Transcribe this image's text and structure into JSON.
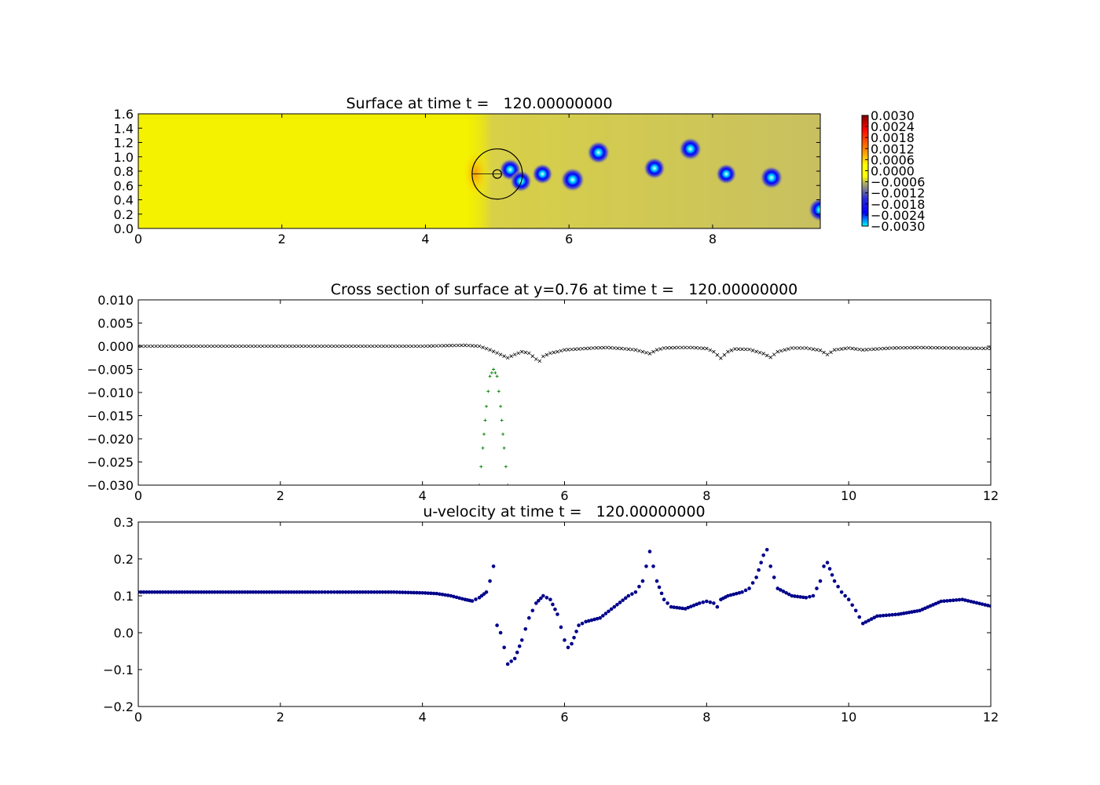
{
  "chart_data": [
    {
      "type": "heatmap",
      "title": "Surface at time t =   120.00000000",
      "xlim": [
        0,
        9.5
      ],
      "ylim": [
        0,
        1.6
      ],
      "xticks": [
        "0",
        "2",
        "4",
        "6",
        "8"
      ],
      "yticks": [
        "0.0",
        "0.2",
        "0.4",
        "0.6",
        "0.8",
        "1.0",
        "1.2",
        "1.4",
        "1.6"
      ],
      "colorbar": {
        "min": -0.003,
        "max": 0.003,
        "ticks": [
          "0.0030",
          "0.0024",
          "0.0018",
          "0.0012",
          "0.0006",
          "0.0000",
          "−0.0006",
          "−0.0012",
          "−0.0018",
          "−0.0024",
          "−0.0030"
        ],
        "colormap": "jet"
      },
      "background_value": 0.0,
      "vortices": [
        {
          "x": 5.18,
          "y": 0.82,
          "value": -0.0024
        },
        {
          "x": 5.33,
          "y": 0.66,
          "value": -0.0024
        },
        {
          "x": 5.63,
          "y": 0.76,
          "value": -0.0022
        },
        {
          "x": 6.05,
          "y": 0.68,
          "value": -0.0028
        },
        {
          "x": 6.41,
          "y": 1.06,
          "value": -0.0026
        },
        {
          "x": 7.19,
          "y": 0.84,
          "value": -0.0024
        },
        {
          "x": 7.69,
          "y": 1.11,
          "value": -0.0026
        },
        {
          "x": 8.19,
          "y": 0.76,
          "value": -0.0022
        },
        {
          "x": 8.82,
          "y": 0.71,
          "value": -0.0026
        },
        {
          "x": 9.5,
          "y": 0.26,
          "value": -0.0028
        }
      ],
      "cylinder": {
        "x": 5.0,
        "y": 0.76,
        "radius": 0.35,
        "inner_radius": 0.06
      }
    },
    {
      "type": "scatter",
      "title": "Cross section of surface at y=0.76 at time t =   120.00000000",
      "xlim": [
        0,
        12
      ],
      "ylim": [
        -0.03,
        0.01
      ],
      "xticks": [
        "0",
        "2",
        "4",
        "6",
        "8",
        "10",
        "12"
      ],
      "yticks": [
        "0.010",
        "0.005",
        "0.000",
        "−0.005",
        "−0.010",
        "−0.015",
        "−0.020",
        "−0.025",
        "−0.030"
      ],
      "series": [
        {
          "marker": "x",
          "color": "#000000",
          "x": [
            0,
            0.5,
            1.0,
            1.5,
            2.0,
            2.5,
            2.8,
            3.2,
            3.6,
            4.0,
            4.3,
            4.6,
            4.8,
            4.95,
            5.1,
            5.2,
            5.3,
            5.4,
            5.5,
            5.6,
            5.65,
            5.7,
            5.8,
            5.9,
            6.0,
            6.2,
            6.4,
            6.6,
            6.8,
            7.0,
            7.1,
            7.2,
            7.3,
            7.4,
            7.6,
            7.8,
            8.0,
            8.1,
            8.2,
            8.3,
            8.4,
            8.6,
            8.8,
            8.9,
            9.0,
            9.2,
            9.4,
            9.6,
            9.7,
            9.8,
            10.0,
            10.2,
            10.6,
            11.0,
            11.5,
            12.0
          ],
          "y": [
            0.0,
            0.0,
            0.0,
            0.0,
            0.0,
            0.0,
            0.0,
            0.0,
            0.0,
            0.0,
            0.0001,
            0.0002,
            0.0,
            -0.0008,
            -0.0018,
            -0.0025,
            -0.0018,
            -0.0012,
            -0.0015,
            -0.0028,
            -0.0032,
            -0.0022,
            -0.0015,
            -0.0012,
            -0.0008,
            -0.0006,
            -0.0004,
            -0.0003,
            -0.0005,
            -0.0008,
            -0.0012,
            -0.0016,
            -0.0008,
            -0.0004,
            -0.0003,
            -0.0003,
            -0.0005,
            -0.0012,
            -0.0026,
            -0.0012,
            -0.0006,
            -0.0007,
            -0.0016,
            -0.0024,
            -0.0012,
            -0.0004,
            -0.0004,
            -0.0009,
            -0.0018,
            -0.0008,
            -0.0004,
            -0.0008,
            -0.0004,
            -0.0003,
            -0.0004,
            -0.0005
          ]
        },
        {
          "marker": "+",
          "color": "#008000",
          "x": [
            4.8,
            4.85,
            4.9,
            4.95,
            5.0,
            5.05,
            5.1,
            5.15,
            5.2
          ],
          "y": [
            -0.03,
            -0.022,
            -0.013,
            -0.0065,
            -0.005,
            -0.0065,
            -0.013,
            -0.022,
            -0.03
          ]
        }
      ]
    },
    {
      "type": "scatter",
      "title": "u-velocity at time t =   120.00000000",
      "xlim": [
        0,
        12
      ],
      "ylim": [
        -0.2,
        0.3
      ],
      "xticks": [
        "0",
        "2",
        "4",
        "6",
        "8",
        "10",
        "12"
      ],
      "yticks": [
        "0.3",
        "0.2",
        "0.1",
        "0.0",
        "−0.1",
        "−0.2"
      ],
      "series": [
        {
          "marker": "o",
          "color": "#00008b",
          "x": [
            0,
            0.5,
            1.0,
            1.5,
            2.0,
            2.5,
            2.8,
            3.2,
            3.6,
            4.0,
            4.2,
            4.4,
            4.6,
            4.7,
            4.8,
            4.9,
            4.95,
            5.0,
            5.05,
            5.1,
            5.15,
            5.2,
            5.3,
            5.4,
            5.5,
            5.6,
            5.7,
            5.8,
            5.9,
            6.0,
            6.05,
            6.1,
            6.2,
            6.3,
            6.5,
            6.7,
            6.9,
            7.0,
            7.1,
            7.15,
            7.2,
            7.25,
            7.3,
            7.4,
            7.5,
            7.7,
            7.9,
            8.0,
            8.1,
            8.15,
            8.2,
            8.3,
            8.5,
            8.6,
            8.7,
            8.8,
            8.85,
            8.9,
            9.0,
            9.2,
            9.4,
            9.5,
            9.6,
            9.65,
            9.7,
            9.8,
            9.9,
            10.0,
            10.1,
            10.2,
            10.4,
            10.7,
            11.0,
            11.3,
            11.6,
            12.0
          ],
          "y": [
            0.11,
            0.11,
            0.11,
            0.11,
            0.11,
            0.11,
            0.11,
            0.11,
            0.11,
            0.108,
            0.106,
            0.1,
            0.09,
            0.086,
            0.095,
            0.11,
            0.14,
            0.18,
            0.02,
            0.0,
            -0.04,
            -0.085,
            -0.07,
            -0.02,
            0.04,
            0.08,
            0.1,
            0.09,
            0.05,
            -0.02,
            -0.04,
            -0.03,
            0.02,
            0.03,
            0.04,
            0.07,
            0.1,
            0.11,
            0.14,
            0.18,
            0.22,
            0.18,
            0.14,
            0.09,
            0.07,
            0.065,
            0.08,
            0.085,
            0.08,
            0.07,
            0.09,
            0.1,
            0.11,
            0.12,
            0.15,
            0.21,
            0.225,
            0.18,
            0.12,
            0.1,
            0.095,
            0.1,
            0.14,
            0.18,
            0.19,
            0.14,
            0.11,
            0.09,
            0.06,
            0.025,
            0.045,
            0.05,
            0.06,
            0.085,
            0.09,
            0.072
          ]
        }
      ]
    }
  ]
}
